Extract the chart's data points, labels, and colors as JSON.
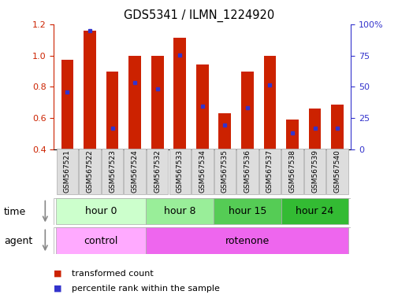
{
  "title": "GDS5341 / ILMN_1224920",
  "samples": [
    "GSM567521",
    "GSM567522",
    "GSM567523",
    "GSM567524",
    "GSM567532",
    "GSM567533",
    "GSM567534",
    "GSM567535",
    "GSM567536",
    "GSM567537",
    "GSM567538",
    "GSM567539",
    "GSM567540"
  ],
  "transformed_count": [
    0.975,
    1.16,
    0.895,
    1.0,
    1.0,
    1.115,
    0.945,
    0.63,
    0.895,
    1.0,
    0.59,
    0.66,
    0.685
  ],
  "bar_bottom": 0.4,
  "percentile_y": [
    0.765,
    1.16,
    0.535,
    0.825,
    0.785,
    1.005,
    0.675,
    0.555,
    0.665,
    0.81,
    0.505,
    0.535,
    0.535
  ],
  "ylim_left": [
    0.4,
    1.2
  ],
  "ylim_right": [
    0,
    100
  ],
  "yticks_left": [
    0.4,
    0.6,
    0.8,
    1.0,
    1.2
  ],
  "yticks_right": [
    0,
    25,
    50,
    75,
    100
  ],
  "ytick_labels_right": [
    "0",
    "25",
    "50",
    "75",
    "100%"
  ],
  "bar_color": "#cc2200",
  "dot_color": "#3333cc",
  "time_groups": [
    {
      "label": "hour 0",
      "n_samples": 4,
      "color": "#ccffcc"
    },
    {
      "label": "hour 8",
      "n_samples": 3,
      "color": "#99ee99"
    },
    {
      "label": "hour 15",
      "n_samples": 3,
      "color": "#55cc55"
    },
    {
      "label": "hour 24",
      "n_samples": 3,
      "color": "#33bb33"
    }
  ],
  "agent_groups": [
    {
      "label": "control",
      "n_samples": 4,
      "color": "#ffaaff"
    },
    {
      "label": "rotenone",
      "n_samples": 9,
      "color": "#ee66ee"
    }
  ],
  "legend_items": [
    {
      "color": "#cc2200",
      "label": "transformed count"
    },
    {
      "color": "#3333cc",
      "label": "percentile rank within the sample"
    }
  ],
  "fig_width": 5.06,
  "fig_height": 3.84
}
